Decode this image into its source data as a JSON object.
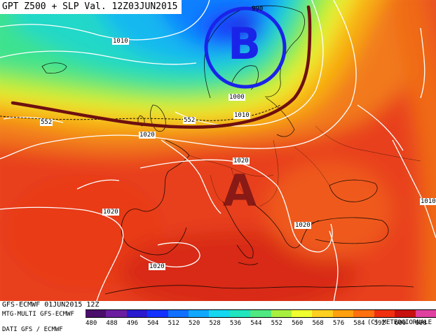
{
  "header": {
    "title": "GPT Z500 + SLP Val. 12Z03JUN2015"
  },
  "isobar_labels": {
    "l1010a": "1010",
    "l1010b": "1010",
    "l1010c": "1010",
    "l1000": "1000",
    "l1020a": "1020",
    "l1020b": "1020",
    "l1020c": "1020",
    "l1020d": "1020",
    "l1020e": "1020",
    "l1020f": "1020",
    "l990": "990"
  },
  "gpt_labels": {
    "g552a": "552",
    "g552b": "552"
  },
  "pressure_systems": {
    "low": "B",
    "high": "A"
  },
  "footer": {
    "model_run": "GFS-ECMWF 01JUN2015 12Z",
    "product": "MTG-MULTI GFS-ECMWF",
    "data_source": "DATI GFS / ECMWF",
    "copyright": "(C) METEOGIORNALE"
  },
  "color_scale": {
    "ticks": [
      "480",
      "488",
      "496",
      "504",
      "512",
      "520",
      "528",
      "536",
      "544",
      "552",
      "560",
      "568",
      "576",
      "584",
      "592",
      "600",
      "608"
    ],
    "colors": [
      "#4a0f6b",
      "#6b1fa0",
      "#2a1bd0",
      "#1432ff",
      "#1070ff",
      "#10a8ff",
      "#15d8f0",
      "#20e6c0",
      "#50e880",
      "#a8f040",
      "#f0ff30",
      "#ffd020",
      "#ffa010",
      "#ff7010",
      "#f03010",
      "#c81010",
      "#e040a0"
    ]
  },
  "colors": {
    "low_marker": "#1a24e8",
    "high_marker": "#7a1414",
    "trough_line": "#6e1010",
    "isobars": "#ffffff",
    "coastlines": "#000000"
  }
}
